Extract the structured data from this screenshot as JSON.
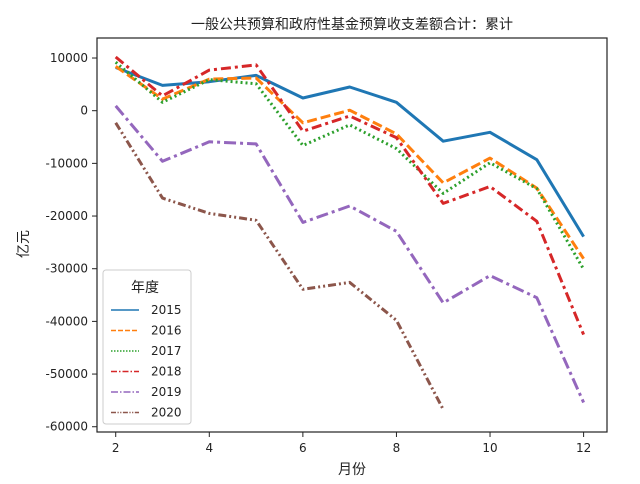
{
  "chart_data": {
    "type": "line",
    "title": "一般公共预算和政府性基金预算收支差额合计：累计",
    "xlabel": "月份",
    "ylabel": "亿元",
    "xlim": [
      1.6,
      12.5
    ],
    "ylim": [
      -61000,
      13800
    ],
    "xticks": [
      2,
      4,
      6,
      8,
      10,
      12
    ],
    "yticks": [
      10000,
      0,
      -10000,
      -20000,
      -30000,
      -40000,
      -50000,
      -60000
    ],
    "grid": false,
    "legend": {
      "title": "年度",
      "placement": "lower-left"
    },
    "series": [
      {
        "name": "2015",
        "color": "#1f77b4",
        "dash": "solid",
        "x": [
          2,
          3,
          4,
          5,
          6,
          7,
          8,
          9,
          10,
          11,
          12
        ],
        "y": [
          8200,
          4800,
          5500,
          6700,
          2400,
          4500,
          1600,
          -5800,
          -4100,
          -9300,
          -23900
        ]
      },
      {
        "name": "2016",
        "color": "#ff7f0e",
        "dash": "dashed",
        "x": [
          2,
          3,
          4,
          5,
          6,
          7,
          8,
          9,
          10,
          11,
          12
        ],
        "y": [
          8400,
          2200,
          6000,
          6200,
          -2300,
          100,
          -4400,
          -13700,
          -9000,
          -14700,
          -28100
        ]
      },
      {
        "name": "2017",
        "color": "#2ca02c",
        "dash": "dotted",
        "x": [
          2,
          3,
          4,
          5,
          6,
          7,
          8,
          9,
          10,
          11,
          12
        ],
        "y": [
          9200,
          1600,
          5900,
          5100,
          -6600,
          -2700,
          -7200,
          -15700,
          -9900,
          -14800,
          -30100
        ]
      },
      {
        "name": "2018",
        "color": "#d62728",
        "dash": "dashdot",
        "x": [
          2,
          3,
          4,
          5,
          6,
          7,
          8,
          9,
          10,
          11,
          12
        ],
        "y": [
          10200,
          2800,
          7700,
          8700,
          -3900,
          -1000,
          -5100,
          -17600,
          -14400,
          -21000,
          -42500
        ]
      },
      {
        "name": "2019",
        "color": "#9467bd",
        "dash": "longdashdot",
        "x": [
          2,
          3,
          4,
          5,
          6,
          7,
          8,
          9,
          10,
          11,
          12
        ],
        "y": [
          900,
          -9600,
          -5900,
          -6300,
          -21200,
          -18100,
          -22900,
          -36500,
          -31300,
          -35500,
          -55400
        ]
      },
      {
        "name": "2020",
        "color": "#8c564b",
        "dash": "dashdotdot",
        "x": [
          2,
          3,
          4,
          5,
          6,
          7,
          8,
          9
        ],
        "y": [
          -2300,
          -16600,
          -19500,
          -20800,
          -33900,
          -32600,
          -39800,
          -56700
        ]
      }
    ]
  }
}
